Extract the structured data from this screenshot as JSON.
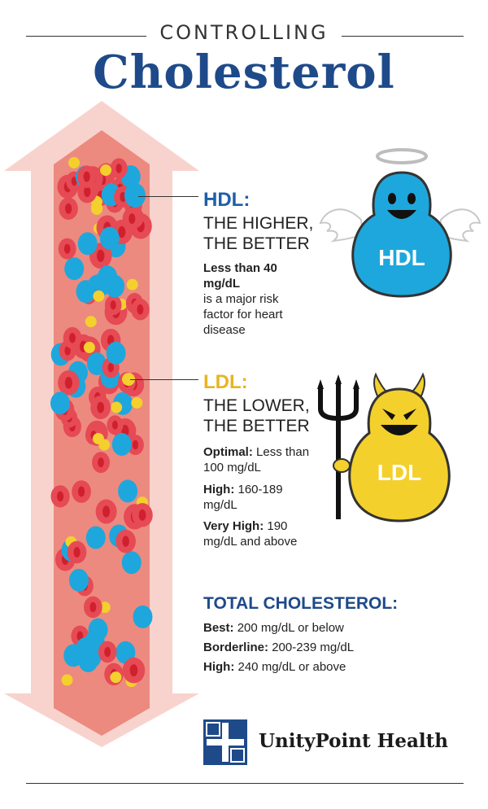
{
  "header": {
    "kicker": "CONTROLLING",
    "title": "Cholesterol"
  },
  "hdl": {
    "heading": "HDL:",
    "line1": "THE HIGHER,",
    "line2": "THE BETTER",
    "desc_bold": "Less than 40 mg/dL",
    "desc": "is a major risk factor for heart disease",
    "mascot_label": "HDL"
  },
  "ldl": {
    "heading": "LDL:",
    "line1": "THE LOWER,",
    "line2": "THE BETTER",
    "optimal_label": "Optimal:",
    "optimal_value": "Less than 100 mg/dL",
    "high_label": "High:",
    "high_value": "160-189 mg/dL",
    "veryhigh_label": "Very High:",
    "veryhigh_value": "190 mg/dL and above",
    "mascot_label": "LDL"
  },
  "total": {
    "heading": "TOTAL CHOLESTEROL:",
    "best_label": "Best:",
    "best_value": "200 mg/dL or below",
    "borderline_label": "Borderline:",
    "borderline_value": "200-239 mg/dL",
    "high_label": "High:",
    "high_value": "240 mg/dL or above"
  },
  "brand": {
    "name": "UnityPoint Health",
    "logo_icon": "cross-logo-icon"
  },
  "colors": {
    "navy": "#1e4a8a",
    "hdl_blue": "#1ea7dc",
    "ldl_yellow": "#f3d02c",
    "vessel": "#ec8a80",
    "arrow": "#f8d3cd"
  }
}
